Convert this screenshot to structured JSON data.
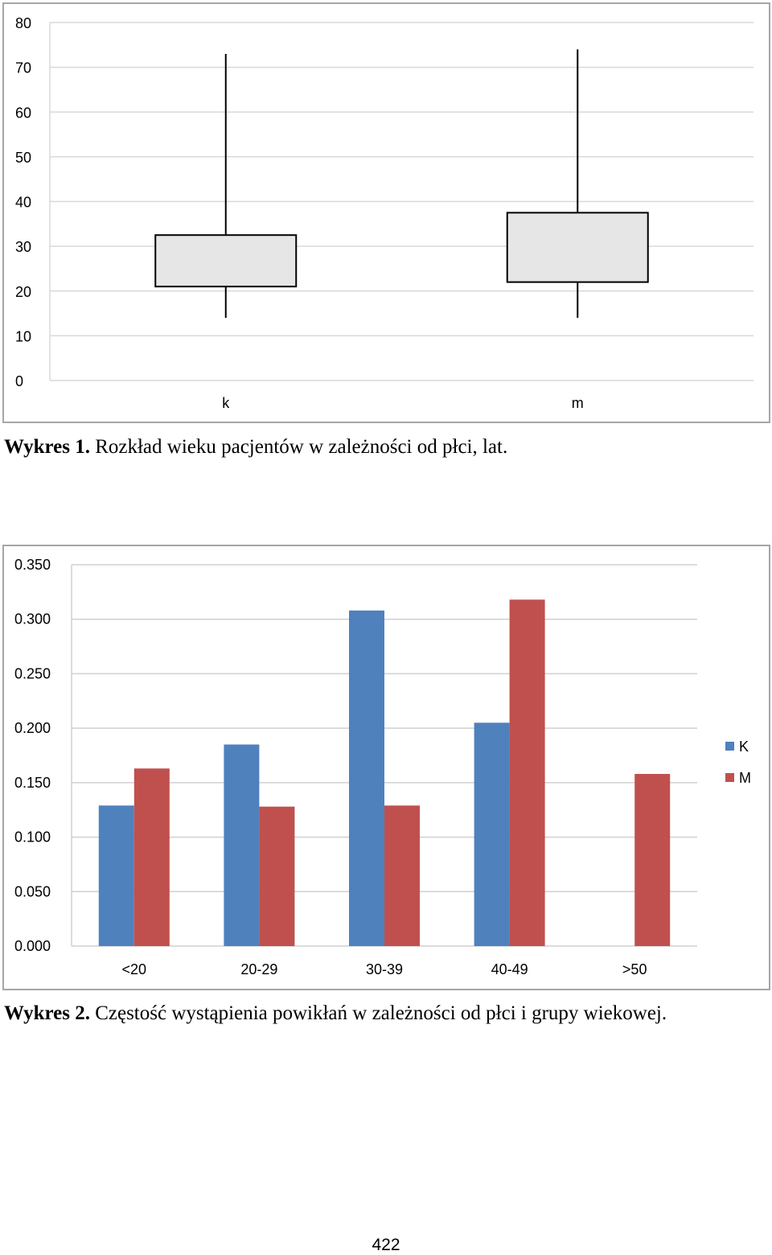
{
  "chart_data": [
    {
      "type": "boxplot",
      "title": "",
      "xlabel": "",
      "ylabel": "",
      "ylim": [
        0,
        80
      ],
      "y_ticks": [
        "0",
        "10",
        "20",
        "30",
        "40",
        "50",
        "60",
        "70",
        "80"
      ],
      "grid": true,
      "categories": [
        "k",
        "m"
      ],
      "boxes": [
        {
          "name": "k",
          "min": 14,
          "q1": 21,
          "q3": 32.5,
          "max": 73
        },
        {
          "name": "m",
          "min": 14,
          "q1": 22,
          "q3": 37.5,
          "max": 74
        }
      ],
      "caption": {
        "label": "Wykres 1.",
        "text": " Rozkład wieku pacjentów w zależności od płci, lat."
      }
    },
    {
      "type": "bar",
      "title": "",
      "xlabel": "",
      "ylabel": "",
      "ylim": [
        0,
        0.35
      ],
      "y_ticks": [
        "0.000",
        "0.050",
        "0.100",
        "0.150",
        "0.200",
        "0.250",
        "0.300",
        "0.350"
      ],
      "grid": true,
      "legend_position": "right",
      "categories": [
        "<20",
        "20-29",
        "30-39",
        "40-49",
        ">50"
      ],
      "series": [
        {
          "name": "K",
          "color": "#4f81bd",
          "values": [
            0.129,
            0.185,
            0.308,
            0.205,
            0.0
          ]
        },
        {
          "name": "M",
          "color": "#c0504d",
          "values": [
            0.163,
            0.128,
            0.129,
            0.318,
            0.158
          ]
        }
      ],
      "caption": {
        "label": "Wykres 2.",
        "text": " Częstość wystąpienia powikłań w zależności od płci i grupy wiekowej."
      }
    }
  ],
  "page": {
    "number": "422"
  }
}
